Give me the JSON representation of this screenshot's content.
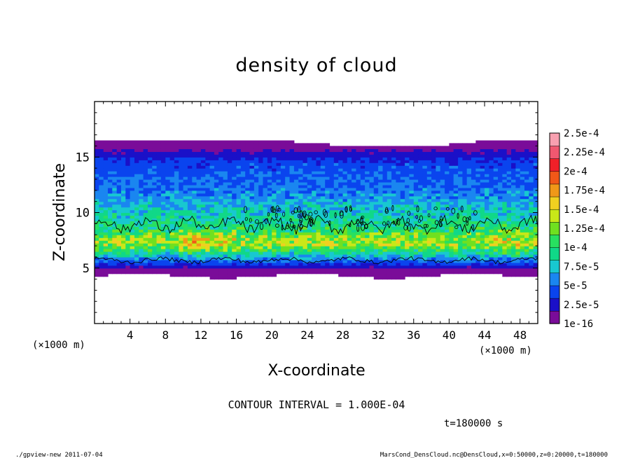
{
  "chart_data": {
    "type": "heatmap",
    "title": "density of cloud",
    "xlabel": "X-coordinate",
    "ylabel": "Z-coordinate",
    "x_unit": "(×1000 m)",
    "y_unit": "(×1000 m)",
    "xlim": [
      0,
      50
    ],
    "ylim": [
      0,
      20
    ],
    "x_ticks": [
      4,
      8,
      12,
      16,
      20,
      24,
      28,
      32,
      36,
      40,
      44,
      48
    ],
    "y_ticks": [
      5,
      10,
      15
    ],
    "colorbar": {
      "labels": [
        "1e-16",
        "2.5e-5",
        "5e-5",
        "7.5e-5",
        "1e-4",
        "1.25e-4",
        "1.5e-4",
        "1.75e-4",
        "2e-4",
        "2.25e-4",
        "2.5e-4"
      ],
      "colors": [
        "#7a0c99",
        "#1a10c8",
        "#0a44ee",
        "#1a86f0",
        "#18c8d0",
        "#10d888",
        "#28e060",
        "#70e020",
        "#c8e818",
        "#f0d020",
        "#f09818",
        "#f05818",
        "#f02028",
        "#f05870",
        "#f8a0b0"
      ]
    },
    "cloud_profile": {
      "z": [
        4.3,
        5.0,
        5.8,
        6.5,
        7.2,
        7.8,
        8.5,
        9.5,
        10.5,
        11.5,
        12.5,
        13.5,
        14.5,
        15.2,
        15.8,
        16.4
      ],
      "density": [
        3e-06,
        1.5e-05,
        5.5e-05,
        9.5e-05,
        0.000135,
        0.000125,
        0.0001,
        8.5e-05,
        7.5e-05,
        6e-05,
        5e-05,
        4.5e-05,
        4e-05,
        2.5e-05,
        1.2e-05,
        2e-06
      ]
    },
    "cloud_top_km": 16.4,
    "cloud_bottom_km": 4.3,
    "contour_level": 0.0001,
    "contour_interval": "CONTOUR INTERVAL = 1.000E-04"
  },
  "time_label": "t=180000 s",
  "footer": {
    "left": "./gpview-new  2011-07-04",
    "right": "MarsCond_DensCloud.nc@DensCloud,x=0:50000,z=0:20000,t=180000"
  }
}
